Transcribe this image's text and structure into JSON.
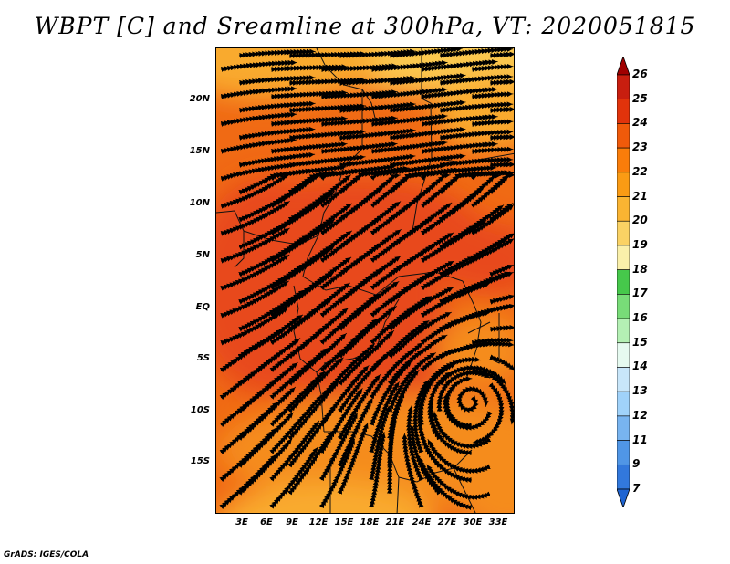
{
  "title": "WBPT [C] and Sreamline at 300hPa, VT: 2020051815",
  "credit": "GrADS: IGES/COLA",
  "map": {
    "variable": "WBPT [C]",
    "level": "300hPa",
    "valid_time": "2020051815",
    "lat_labels": [
      "20N",
      "15N",
      "10N",
      "5N",
      "EQ",
      "5S",
      "10S",
      "15S"
    ],
    "lon_labels": [
      "3E",
      "6E",
      "9E",
      "12E",
      "15E",
      "18E",
      "21E",
      "24E",
      "27E",
      "30E",
      "33E"
    ],
    "cyclone_center": {
      "lon": 30.5,
      "lat": -10.0
    }
  },
  "colorbar": {
    "labels": [
      "26",
      "25",
      "24",
      "23",
      "22",
      "21",
      "20",
      "19",
      "18",
      "17",
      "16",
      "15",
      "14",
      "13",
      "12",
      "11",
      "9",
      "7"
    ],
    "colors": [
      "#a00000",
      "#c81e0f",
      "#e1330b",
      "#f05a0a",
      "#fa7d0a",
      "#fa9b14",
      "#fab432",
      "#fad264",
      "#faf0aa",
      "#46c84b",
      "#78dc78",
      "#b4f0b4",
      "#e6faf0",
      "#c8e6fa",
      "#a0d2fa",
      "#78b4f0",
      "#5096e6",
      "#3278dc",
      "#1e64d2"
    ]
  },
  "colors": {
    "orange_deep": "#e8491a",
    "orange_mid": "#f06a14",
    "orange_light": "#f58c1e",
    "yellow_orange": "#f9aa2e",
    "pale_yellow": "#fbc850"
  }
}
